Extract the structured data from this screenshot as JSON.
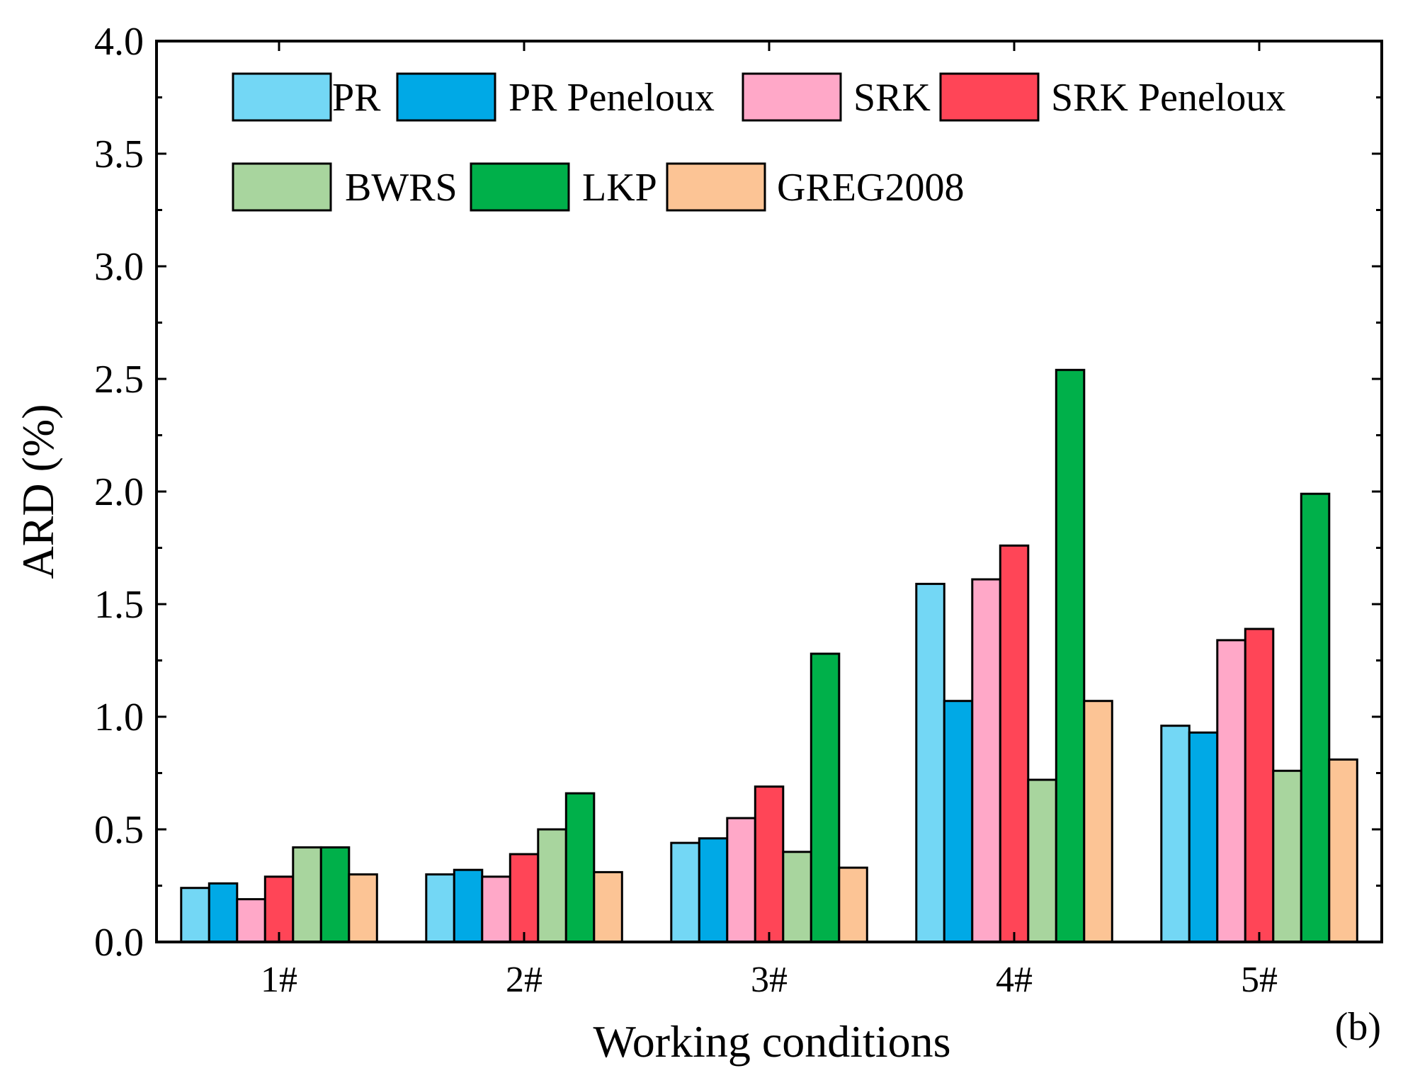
{
  "chart_data": {
    "type": "bar",
    "title": "",
    "xlabel": "Working conditions",
    "ylabel": "ARD (%)",
    "panel_label": "(b)",
    "ylim": [
      0,
      4.0
    ],
    "yticks": [
      "0.0",
      "0.5",
      "1.0",
      "1.5",
      "2.0",
      "2.5",
      "3.0",
      "3.5",
      "4.0"
    ],
    "categories": [
      "1#",
      "2#",
      "3#",
      "4#",
      "5#"
    ],
    "legend_position": "top-left, inside plot, two rows",
    "series": [
      {
        "name": "PR",
        "color": "#73D7F5",
        "values": [
          0.24,
          0.3,
          0.44,
          1.59,
          0.96
        ]
      },
      {
        "name": "PR Peneloux",
        "color": "#00A9E6",
        "values": [
          0.26,
          0.32,
          0.46,
          1.07,
          0.93
        ]
      },
      {
        "name": "SRK",
        "color": "#FFA8C8",
        "values": [
          0.19,
          0.29,
          0.55,
          1.61,
          1.34
        ]
      },
      {
        "name": "SRK Peneloux",
        "color": "#FF4557",
        "values": [
          0.29,
          0.39,
          0.69,
          1.76,
          1.39
        ]
      },
      {
        "name": "BWRS",
        "color": "#A8D59E",
        "values": [
          0.42,
          0.5,
          0.4,
          0.72,
          0.76
        ]
      },
      {
        "name": "LKP",
        "color": "#00B04A",
        "values": [
          0.42,
          0.66,
          1.28,
          2.54,
          1.99
        ]
      },
      {
        "name": "GREG2008",
        "color": "#FCC495",
        "values": [
          0.3,
          0.31,
          0.33,
          1.07,
          0.81
        ]
      }
    ]
  }
}
